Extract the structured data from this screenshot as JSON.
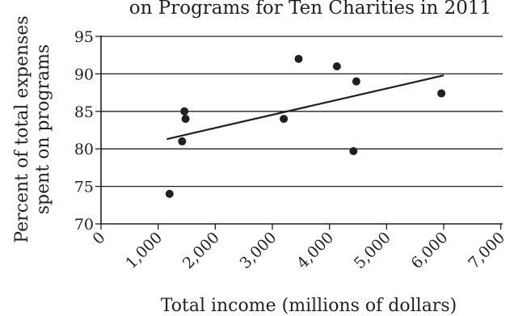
{
  "chart_data": {
    "type": "scatter",
    "title": "on Programs for Ten Charities in 2011",
    "xlabel": "Total income (millions of dollars)",
    "ylabel_lines": [
      "Percent of total expenses",
      "spent on programs"
    ],
    "xlim": [
      0,
      7000
    ],
    "ylim": [
      70,
      95
    ],
    "xticks": [
      0,
      1000,
      2000,
      3000,
      4000,
      5000,
      6000,
      7000
    ],
    "xtick_labels": [
      "0",
      "1,000",
      "2,000",
      "3,000",
      "4,000",
      "5,000",
      "6,000",
      "7,000"
    ],
    "yticks": [
      70,
      75,
      80,
      85,
      90,
      95
    ],
    "ytick_labels": [
      "70",
      "75",
      "80",
      "85",
      "90",
      "95"
    ],
    "grid": "horizontal",
    "points": [
      {
        "x": 1200,
        "y": 74
      },
      {
        "x": 1420,
        "y": 81
      },
      {
        "x": 1460,
        "y": 85
      },
      {
        "x": 1480,
        "y": 84
      },
      {
        "x": 3200,
        "y": 84
      },
      {
        "x": 3460,
        "y": 92
      },
      {
        "x": 4130,
        "y": 91
      },
      {
        "x": 4420,
        "y": 79.7
      },
      {
        "x": 4470,
        "y": 89
      },
      {
        "x": 5960,
        "y": 87.4
      }
    ],
    "trendline": {
      "x": [
        1150,
        6000
      ],
      "y": [
        81.3,
        89.8
      ]
    }
  }
}
